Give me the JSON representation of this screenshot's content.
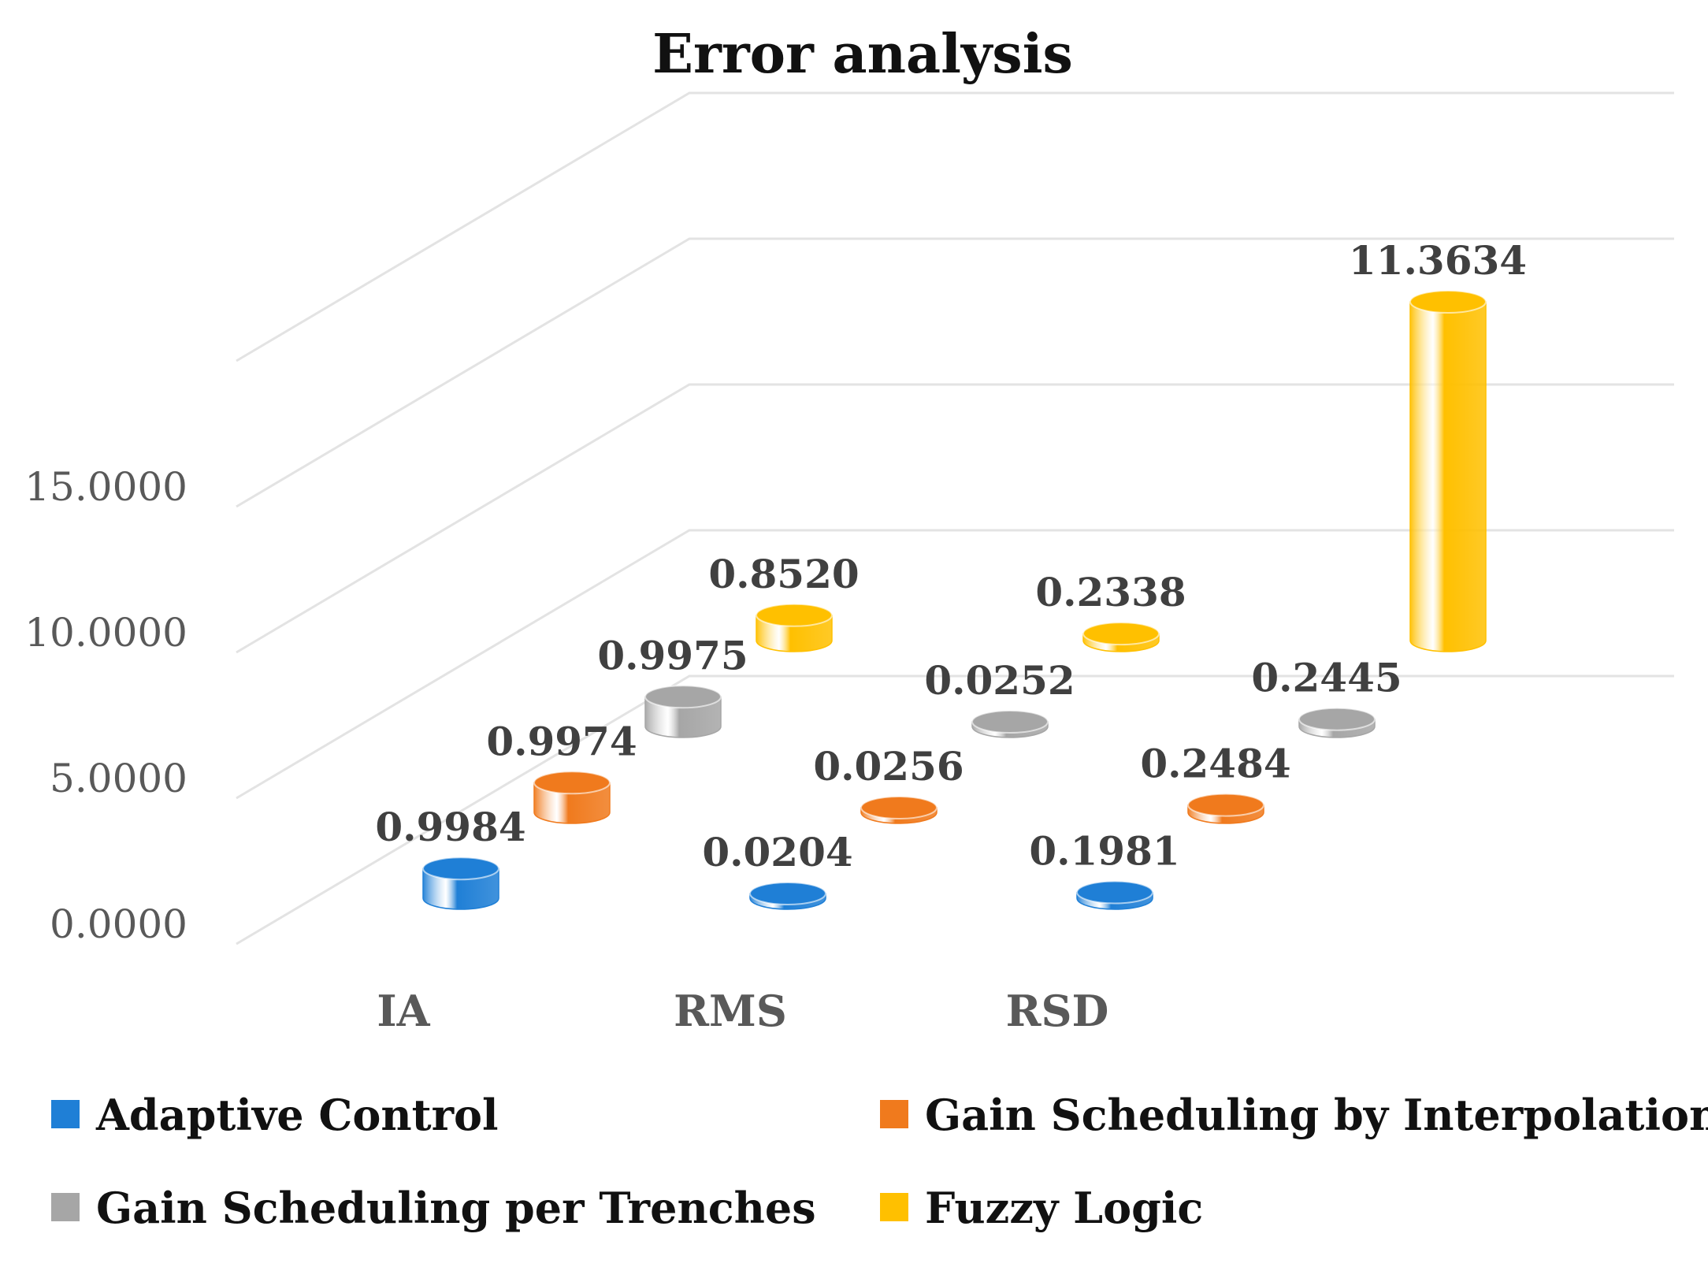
{
  "chart_data": {
    "type": "bar",
    "style": "3d-cylinder",
    "title": "Error analysis",
    "categories": [
      "IA",
      "RMS",
      "RSD"
    ],
    "yticks": [
      "0.0000",
      "5.0000",
      "10.0000",
      "15.0000"
    ],
    "ylim": [
      0,
      15
    ],
    "grid": true,
    "legend_position": "bottom",
    "series": [
      {
        "name": "Adaptive Control",
        "color": "#1f7fd6",
        "values": [
          0.9984,
          0.0204,
          0.1981
        ],
        "labels": [
          "0.9984",
          "0.0204",
          "0.1981"
        ]
      },
      {
        "name": "Gain Scheduling by Interpolation",
        "color": "#f07a1d",
        "values": [
          0.9974,
          0.0256,
          0.2484
        ],
        "labels": [
          "0.9974",
          "0.0256",
          "0.2484"
        ]
      },
      {
        "name": "Gain Scheduling per Trenches",
        "color": "#a6a6a6",
        "values": [
          0.9975,
          0.0252,
          0.2445
        ],
        "labels": [
          "0.9975",
          "0.0252",
          "0.2445"
        ]
      },
      {
        "name": "Fuzzy Logic",
        "color": "#ffc000",
        "values": [
          0.852,
          0.2338,
          11.3634
        ],
        "labels": [
          "0.8520",
          "0.2338",
          "11.3634"
        ]
      }
    ]
  }
}
